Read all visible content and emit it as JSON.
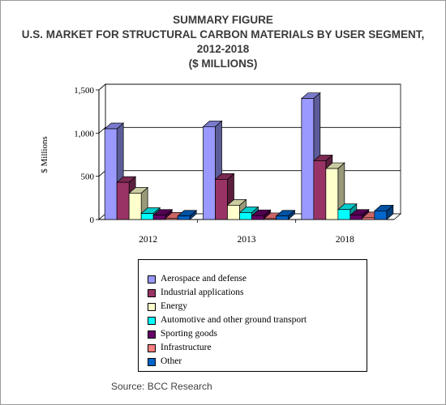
{
  "title_lines": [
    "SUMMARY FIGURE",
    "U.S. MARKET FOR STRUCTURAL CARBON MATERIALS BY USER SEGMENT,",
    "2012-2018",
    "($ MILLIONS)"
  ],
  "source": "Source: BCC Research",
  "chart_data": {
    "type": "bar",
    "title": "SUMMARY FIGURE U.S. MARKET FOR STRUCTURAL CARBON MATERIALS BY USER SEGMENT, 2012-2018 ($ MILLIONS)",
    "ylabel": "$ Millions",
    "ylim": [
      0,
      1500
    ],
    "yticks": [
      "0",
      "500",
      "1,000",
      "1,500"
    ],
    "ytick_values": [
      0,
      500,
      1000,
      1500
    ],
    "categories": [
      "2012",
      "2013",
      "2018"
    ],
    "grid": true,
    "legend_position": "bottom",
    "series": [
      {
        "name": "Aerospace and defense",
        "color": "#9999ff",
        "values": [
          1050,
          1075,
          1400
        ]
      },
      {
        "name": "Industrial applications",
        "color": "#993366",
        "values": [
          430,
          465,
          680
        ]
      },
      {
        "name": "Energy",
        "color": "#ffffcc",
        "values": [
          305,
          165,
          590
        ]
      },
      {
        "name": "Automotive and other ground transport",
        "color": "#00ffff",
        "values": [
          70,
          80,
          115
        ]
      },
      {
        "name": "Sporting goods",
        "color": "#660066",
        "values": [
          50,
          45,
          50
        ]
      },
      {
        "name": "Infrastructure",
        "color": "#ff8080",
        "values": [
          15,
          10,
          20
        ]
      },
      {
        "name": "Other",
        "color": "#0066cc",
        "values": [
          40,
          40,
          100
        ]
      }
    ]
  }
}
